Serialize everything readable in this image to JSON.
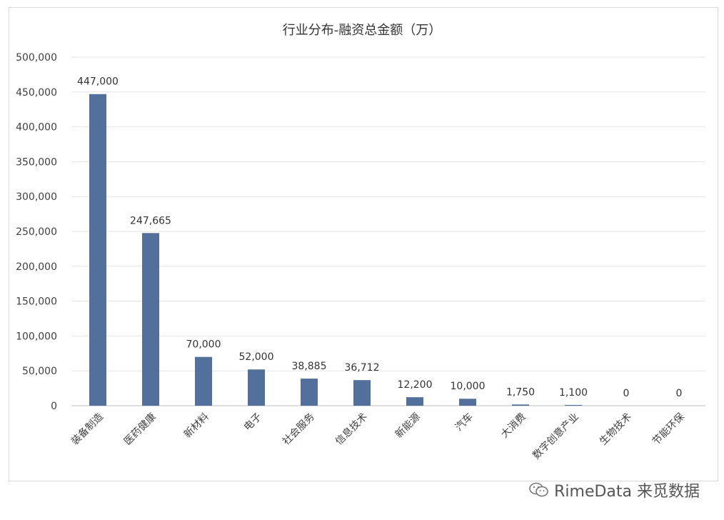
{
  "chart_data": {
    "type": "bar",
    "title": "行业分布-融资总金额（万）",
    "categories": [
      "装备制造",
      "医药健康",
      "新材料",
      "电子",
      "社会服务",
      "信息技术",
      "新能源",
      "汽车",
      "大消费",
      "数字创意产业",
      "生物技术",
      "节能环保"
    ],
    "values": [
      447000,
      247665,
      70000,
      52000,
      38885,
      36712,
      12200,
      10000,
      1750,
      1100,
      0,
      0
    ],
    "value_labels": [
      "447,000",
      "247,665",
      "70,000",
      "52,000",
      "38,885",
      "36,712",
      "12,200",
      "10,000",
      "1,750",
      "1,100",
      "0",
      "0"
    ],
    "ylim": [
      0,
      500000
    ],
    "yticks": [
      0,
      50000,
      100000,
      150000,
      200000,
      250000,
      300000,
      350000,
      400000,
      450000,
      500000
    ],
    "ytick_labels": [
      "0",
      "50,000",
      "100,000",
      "150,000",
      "200,000",
      "250,000",
      "300,000",
      "350,000",
      "400,000",
      "450,000",
      "500,000"
    ],
    "grid": true,
    "legend": "none",
    "bar_color": "#536f9b"
  },
  "watermark": {
    "text": "RimeData 来觅数据",
    "icon": "wechat-icon"
  }
}
